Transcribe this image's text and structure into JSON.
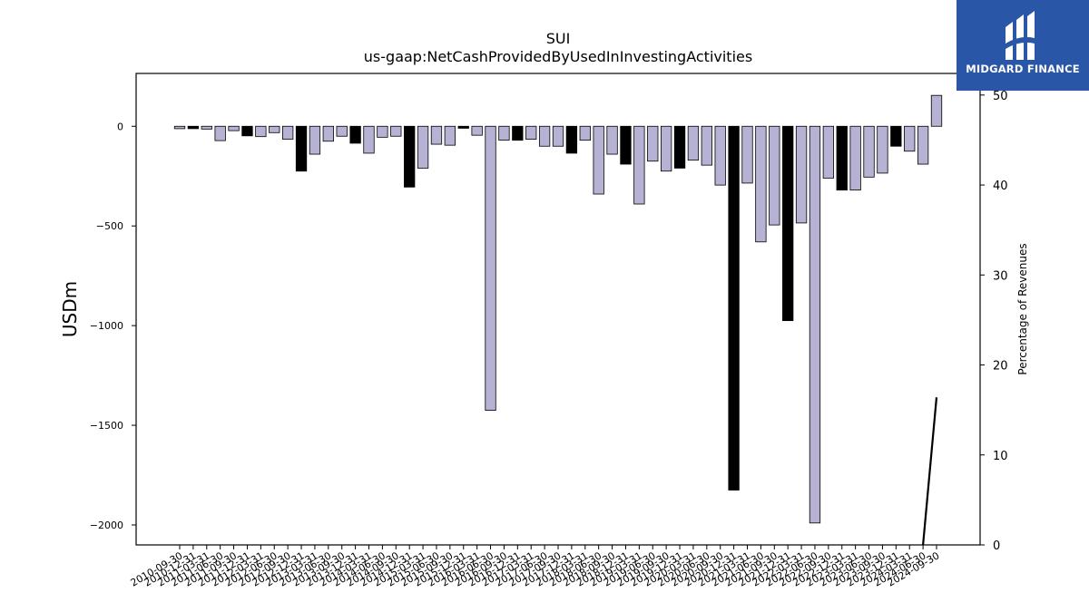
{
  "chart_data": {
    "type": "bar",
    "title": "SUI",
    "subtitle": "us-gaap:NetCashProvidedByUsedInInvestingActivities",
    "ylabel": "USDm",
    "y2label": "Percentage of Revenues",
    "ylim": [
      -2100,
      265
    ],
    "y2lim": [
      0,
      52.4
    ],
    "yticks": [
      0,
      -500,
      -1000,
      -1500,
      -2000
    ],
    "y2ticks": [
      0,
      10,
      20,
      30,
      40,
      50
    ],
    "grid": false,
    "colors": {
      "annual": "#000000",
      "quarter": "#b6b2d4"
    },
    "categories": [
      "2010-09-30",
      "2010-12-31",
      "2011-03-31",
      "2011-06-30",
      "2011-09-30",
      "2011-12-31",
      "2012-03-31",
      "2012-06-30",
      "2012-09-30",
      "2012-12-31",
      "2013-03-31",
      "2013-06-30",
      "2013-09-30",
      "2013-12-31",
      "2014-03-31",
      "2014-06-30",
      "2014-09-30",
      "2014-12-31",
      "2015-03-31",
      "2015-06-30",
      "2015-09-30",
      "2015-12-31",
      "2016-03-31",
      "2016-06-30",
      "2016-09-30",
      "2016-12-31",
      "2017-03-31",
      "2017-06-30",
      "2017-09-30",
      "2017-12-31",
      "2018-03-31",
      "2018-06-30",
      "2018-09-30",
      "2018-12-31",
      "2019-03-31",
      "2019-06-30",
      "2019-09-30",
      "2019-12-31",
      "2020-03-31",
      "2020-06-30",
      "2020-09-30",
      "2020-12-31",
      "2021-03-31",
      "2021-06-30",
      "2021-09-30",
      "2021-12-31",
      "2022-03-31",
      "2022-06-30",
      "2022-09-30",
      "2022-12-31",
      "2023-03-31",
      "2023-06-30",
      "2023-09-30",
      "2023-12-31",
      "2024-03-31",
      "2024-06-30",
      "2024-09-30"
    ],
    "series": [
      {
        "values": [
          -12,
          -12,
          -14,
          -72,
          -22,
          -48,
          -52,
          -32,
          -65,
          -225,
          -140,
          -75,
          -50,
          -85,
          -135,
          -55,
          -50,
          -305,
          -210,
          -90,
          -95,
          -10,
          -45,
          -1425,
          -70,
          -70,
          -65,
          -100,
          -100,
          -135,
          -70,
          -340,
          -140,
          -190,
          -390,
          -175,
          -225,
          -210,
          -170,
          -195,
          -295,
          -1825,
          -285,
          -580,
          -495,
          -975,
          -485,
          -1990,
          -260,
          -320,
          -320,
          -255,
          -235,
          -100,
          -125,
          -190,
          155
        ],
        "annual": [
          false,
          true,
          false,
          false,
          false,
          true,
          false,
          false,
          false,
          true,
          false,
          false,
          false,
          true,
          false,
          false,
          false,
          true,
          false,
          false,
          false,
          true,
          false,
          false,
          false,
          true,
          false,
          false,
          false,
          true,
          false,
          false,
          false,
          true,
          false,
          false,
          false,
          true,
          false,
          false,
          false,
          true,
          false,
          false,
          false,
          true,
          false,
          false,
          false,
          true,
          false,
          false,
          false,
          true,
          false,
          false,
          false
        ]
      }
    ],
    "pct_line": {
      "x": [
        "2024-06-30",
        "2024-09-30"
      ],
      "y": [
        0,
        16.4
      ]
    }
  },
  "logo": {
    "text": "MIDGARD FINANCE"
  }
}
